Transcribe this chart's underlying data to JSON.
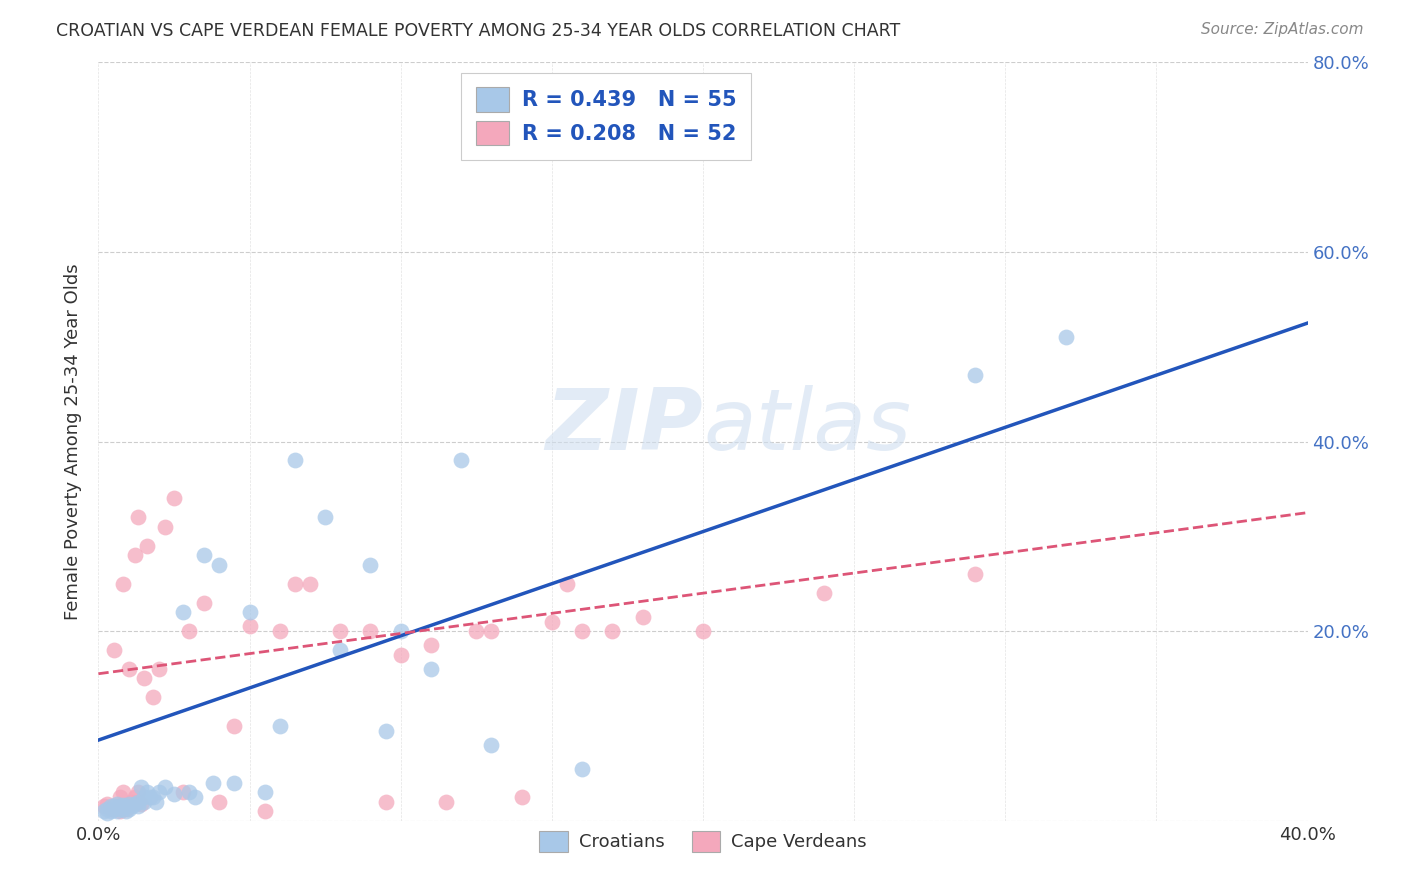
{
  "title": "CROATIAN VS CAPE VERDEAN FEMALE POVERTY AMONG 25-34 YEAR OLDS CORRELATION CHART",
  "source": "Source: ZipAtlas.com",
  "ylabel": "Female Poverty Among 25-34 Year Olds",
  "xlim": [
    0.0,
    0.4
  ],
  "ylim": [
    0.0,
    0.8
  ],
  "croatian_color": "#a8c8e8",
  "capeverdean_color": "#f4a8bc",
  "croatian_R": 0.439,
  "croatian_N": 55,
  "capeverdean_R": 0.208,
  "capeverdean_N": 52,
  "croatian_line_color": "#2255bb",
  "capeverdean_line_color": "#dd5577",
  "legend_text_color": "#2255bb",
  "watermark": "ZIPatlas",
  "background_color": "#ffffff",
  "croatian_line_x0": 0.0,
  "croatian_line_y0": 0.085,
  "croatian_line_x1": 0.4,
  "croatian_line_y1": 0.525,
  "capeverdean_line_x0": 0.0,
  "capeverdean_line_y0": 0.155,
  "capeverdean_line_x1": 0.4,
  "capeverdean_line_y1": 0.325,
  "croatian_scatter_x": [
    0.002,
    0.003,
    0.003,
    0.004,
    0.004,
    0.005,
    0.005,
    0.006,
    0.006,
    0.006,
    0.007,
    0.007,
    0.008,
    0.008,
    0.008,
    0.009,
    0.009,
    0.01,
    0.01,
    0.011,
    0.012,
    0.013,
    0.013,
    0.014,
    0.015,
    0.015,
    0.016,
    0.017,
    0.018,
    0.019,
    0.02,
    0.022,
    0.025,
    0.028,
    0.03,
    0.032,
    0.035,
    0.038,
    0.04,
    0.045,
    0.05,
    0.055,
    0.06,
    0.065,
    0.075,
    0.08,
    0.09,
    0.095,
    0.1,
    0.11,
    0.12,
    0.13,
    0.16,
    0.29,
    0.32
  ],
  "croatian_scatter_y": [
    0.01,
    0.012,
    0.008,
    0.01,
    0.015,
    0.012,
    0.015,
    0.01,
    0.013,
    0.018,
    0.012,
    0.015,
    0.015,
    0.012,
    0.017,
    0.01,
    0.015,
    0.012,
    0.018,
    0.015,
    0.018,
    0.02,
    0.015,
    0.035,
    0.025,
    0.02,
    0.03,
    0.025,
    0.025,
    0.02,
    0.03,
    0.035,
    0.028,
    0.22,
    0.03,
    0.025,
    0.28,
    0.04,
    0.27,
    0.04,
    0.22,
    0.03,
    0.1,
    0.38,
    0.32,
    0.18,
    0.27,
    0.095,
    0.2,
    0.16,
    0.38,
    0.08,
    0.055,
    0.47,
    0.51
  ],
  "capeverdean_scatter_x": [
    0.002,
    0.003,
    0.004,
    0.005,
    0.005,
    0.006,
    0.007,
    0.007,
    0.008,
    0.008,
    0.009,
    0.01,
    0.01,
    0.011,
    0.012,
    0.012,
    0.013,
    0.013,
    0.014,
    0.015,
    0.016,
    0.018,
    0.02,
    0.022,
    0.025,
    0.028,
    0.03,
    0.035,
    0.04,
    0.045,
    0.05,
    0.055,
    0.06,
    0.065,
    0.07,
    0.08,
    0.09,
    0.095,
    0.1,
    0.11,
    0.115,
    0.125,
    0.13,
    0.14,
    0.15,
    0.155,
    0.16,
    0.17,
    0.18,
    0.2,
    0.24,
    0.29
  ],
  "capeverdean_scatter_y": [
    0.015,
    0.018,
    0.012,
    0.013,
    0.18,
    0.015,
    0.01,
    0.025,
    0.03,
    0.25,
    0.012,
    0.16,
    0.015,
    0.02,
    0.025,
    0.28,
    0.03,
    0.32,
    0.018,
    0.15,
    0.29,
    0.13,
    0.16,
    0.31,
    0.34,
    0.03,
    0.2,
    0.23,
    0.02,
    0.1,
    0.205,
    0.01,
    0.2,
    0.25,
    0.25,
    0.2,
    0.2,
    0.02,
    0.175,
    0.185,
    0.02,
    0.2,
    0.2,
    0.025,
    0.21,
    0.25,
    0.2,
    0.2,
    0.215,
    0.2,
    0.24,
    0.26
  ]
}
